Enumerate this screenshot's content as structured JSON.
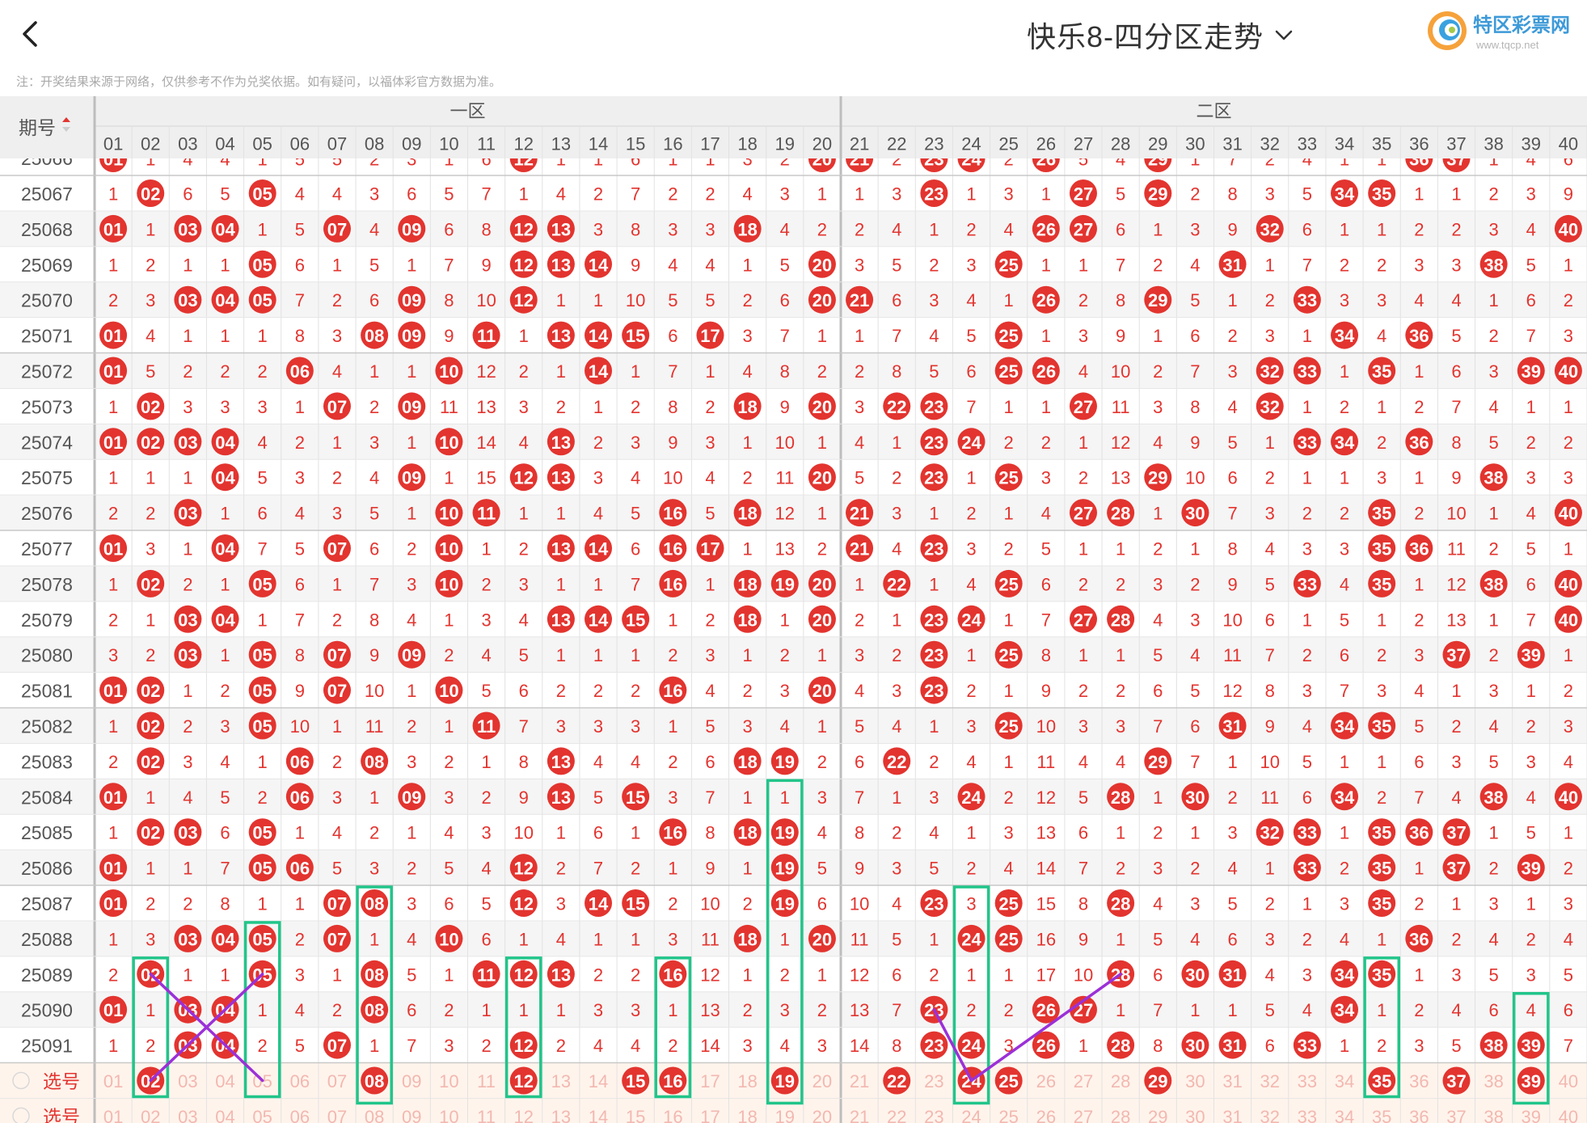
{
  "header": {
    "title": "快乐8-四分区走势",
    "logo_text": "特区彩票网",
    "logo_url_text": "www.tqcp.net"
  },
  "notice": "注：开奖结果来源于网络，仅供参考不作为兑奖依据。如有疑问，以福体彩官方数据为准。",
  "table": {
    "period_header": "期号",
    "zone_labels": [
      "一区",
      "二区"
    ],
    "columns": [
      "01",
      "02",
      "03",
      "04",
      "05",
      "06",
      "07",
      "08",
      "09",
      "10",
      "11",
      "12",
      "13",
      "14",
      "15",
      "16",
      "17",
      "18",
      "19",
      "20",
      "21",
      "22",
      "23",
      "24",
      "25",
      "26",
      "27",
      "28",
      "29",
      "30",
      "31",
      "32",
      "33",
      "34",
      "35",
      "36",
      "37",
      "38",
      "39",
      "40"
    ],
    "partial_top_row": {
      "period": "25066",
      "cells": [
        "01",
        "1",
        "4",
        "4",
        "1",
        "5",
        "5",
        "2",
        "3",
        "1",
        "6",
        "12",
        "1",
        "1",
        "6",
        "1",
        "1",
        "3",
        "2",
        "20",
        "21",
        "2",
        "23",
        "24",
        "2",
        "26",
        "5",
        "4",
        "29",
        "1",
        "7",
        "2",
        "4",
        "1",
        "1",
        "36",
        "37",
        "1",
        "4",
        "6"
      ]
    },
    "rows": [
      {
        "period": "25067",
        "cells": [
          "1",
          "02",
          "6",
          "5",
          "05",
          "4",
          "4",
          "3",
          "6",
          "5",
          "7",
          "1",
          "4",
          "2",
          "7",
          "2",
          "2",
          "4",
          "3",
          "1",
          "1",
          "3",
          "23",
          "1",
          "3",
          "1",
          "27",
          "5",
          "29",
          "2",
          "8",
          "3",
          "5",
          "34",
          "35",
          "1",
          "1",
          "2",
          "3",
          "9"
        ]
      },
      {
        "period": "25068",
        "cells": [
          "01",
          "1",
          "03",
          "04",
          "1",
          "5",
          "07",
          "4",
          "09",
          "6",
          "8",
          "12",
          "13",
          "3",
          "8",
          "3",
          "3",
          "18",
          "4",
          "2",
          "2",
          "4",
          "1",
          "2",
          "4",
          "26",
          "27",
          "6",
          "1",
          "3",
          "9",
          "32",
          "6",
          "1",
          "1",
          "2",
          "2",
          "3",
          "4",
          "40"
        ]
      },
      {
        "period": "25069",
        "cells": [
          "1",
          "2",
          "1",
          "1",
          "05",
          "6",
          "1",
          "5",
          "1",
          "7",
          "9",
          "12",
          "13",
          "14",
          "9",
          "4",
          "4",
          "1",
          "5",
          "20",
          "3",
          "5",
          "2",
          "3",
          "25",
          "1",
          "1",
          "7",
          "2",
          "4",
          "31",
          "1",
          "7",
          "2",
          "2",
          "3",
          "3",
          "38",
          "5",
          "1"
        ]
      },
      {
        "period": "25070",
        "cells": [
          "2",
          "3",
          "03",
          "04",
          "05",
          "7",
          "2",
          "6",
          "09",
          "8",
          "10",
          "12",
          "1",
          "1",
          "10",
          "5",
          "5",
          "2",
          "6",
          "20",
          "21",
          "6",
          "3",
          "4",
          "1",
          "26",
          "2",
          "8",
          "29",
          "5",
          "1",
          "2",
          "33",
          "3",
          "3",
          "4",
          "4",
          "1",
          "6",
          "2"
        ]
      },
      {
        "period": "25071",
        "cells": [
          "01",
          "4",
          "1",
          "1",
          "1",
          "8",
          "3",
          "08",
          "09",
          "9",
          "11",
          "1",
          "13",
          "14",
          "15",
          "6",
          "17",
          "3",
          "7",
          "1",
          "1",
          "7",
          "4",
          "5",
          "25",
          "1",
          "3",
          "9",
          "1",
          "6",
          "2",
          "3",
          "1",
          "34",
          "4",
          "36",
          "5",
          "2",
          "7",
          "3"
        ]
      },
      {
        "period": "25072",
        "cells": [
          "01",
          "5",
          "2",
          "2",
          "2",
          "06",
          "4",
          "1",
          "1",
          "10",
          "12",
          "2",
          "1",
          "14",
          "1",
          "7",
          "1",
          "4",
          "8",
          "2",
          "2",
          "8",
          "5",
          "6",
          "25",
          "26",
          "4",
          "10",
          "2",
          "7",
          "3",
          "32",
          "33",
          "1",
          "35",
          "1",
          "6",
          "3",
          "39",
          "40"
        ]
      },
      {
        "period": "25073",
        "cells": [
          "1",
          "02",
          "3",
          "3",
          "3",
          "1",
          "07",
          "2",
          "09",
          "11",
          "13",
          "3",
          "2",
          "1",
          "2",
          "8",
          "2",
          "18",
          "9",
          "20",
          "3",
          "22",
          "23",
          "7",
          "1",
          "1",
          "27",
          "11",
          "3",
          "8",
          "4",
          "32",
          "1",
          "2",
          "1",
          "2",
          "7",
          "4",
          "1",
          "1"
        ]
      },
      {
        "period": "25074",
        "cells": [
          "01",
          "02",
          "03",
          "04",
          "4",
          "2",
          "1",
          "3",
          "1",
          "10",
          "14",
          "4",
          "13",
          "2",
          "3",
          "9",
          "3",
          "1",
          "10",
          "1",
          "4",
          "1",
          "23",
          "24",
          "2",
          "2",
          "1",
          "12",
          "4",
          "9",
          "5",
          "1",
          "33",
          "34",
          "2",
          "36",
          "8",
          "5",
          "2",
          "2"
        ]
      },
      {
        "period": "25075",
        "cells": [
          "1",
          "1",
          "1",
          "04",
          "5",
          "3",
          "2",
          "4",
          "09",
          "1",
          "15",
          "12",
          "13",
          "3",
          "4",
          "10",
          "4",
          "2",
          "11",
          "20",
          "5",
          "2",
          "23",
          "1",
          "25",
          "3",
          "2",
          "13",
          "29",
          "10",
          "6",
          "2",
          "1",
          "1",
          "3",
          "1",
          "9",
          "38",
          "3",
          "3"
        ]
      },
      {
        "period": "25076",
        "cells": [
          "2",
          "2",
          "03",
          "1",
          "6",
          "4",
          "3",
          "5",
          "1",
          "10",
          "11",
          "1",
          "1",
          "4",
          "5",
          "16",
          "5",
          "18",
          "12",
          "1",
          "21",
          "3",
          "1",
          "2",
          "1",
          "4",
          "27",
          "28",
          "1",
          "30",
          "7",
          "3",
          "2",
          "2",
          "35",
          "2",
          "10",
          "1",
          "4",
          "40"
        ]
      },
      {
        "period": "25077",
        "cells": [
          "01",
          "3",
          "1",
          "04",
          "7",
          "5",
          "07",
          "6",
          "2",
          "10",
          "1",
          "2",
          "13",
          "14",
          "6",
          "16",
          "17",
          "1",
          "13",
          "2",
          "21",
          "4",
          "23",
          "3",
          "2",
          "5",
          "1",
          "1",
          "2",
          "1",
          "8",
          "4",
          "3",
          "3",
          "35",
          "36",
          "11",
          "2",
          "5",
          "1"
        ]
      },
      {
        "period": "25078",
        "cells": [
          "1",
          "02",
          "2",
          "1",
          "05",
          "6",
          "1",
          "7",
          "3",
          "10",
          "2",
          "3",
          "1",
          "1",
          "7",
          "16",
          "1",
          "18",
          "19",
          "20",
          "1",
          "22",
          "1",
          "4",
          "25",
          "6",
          "2",
          "2",
          "3",
          "2",
          "9",
          "5",
          "33",
          "4",
          "35",
          "1",
          "12",
          "38",
          "6",
          "40"
        ]
      },
      {
        "period": "25079",
        "cells": [
          "2",
          "1",
          "03",
          "04",
          "1",
          "7",
          "2",
          "8",
          "4",
          "1",
          "3",
          "4",
          "13",
          "14",
          "15",
          "1",
          "2",
          "18",
          "1",
          "20",
          "2",
          "1",
          "23",
          "24",
          "1",
          "7",
          "27",
          "28",
          "4",
          "3",
          "10",
          "6",
          "1",
          "5",
          "1",
          "2",
          "13",
          "1",
          "7",
          "40"
        ]
      },
      {
        "period": "25080",
        "cells": [
          "3",
          "2",
          "03",
          "1",
          "05",
          "8",
          "07",
          "9",
          "09",
          "2",
          "4",
          "5",
          "1",
          "1",
          "1",
          "2",
          "3",
          "1",
          "2",
          "1",
          "3",
          "2",
          "23",
          "1",
          "25",
          "8",
          "1",
          "1",
          "5",
          "4",
          "11",
          "7",
          "2",
          "6",
          "2",
          "3",
          "37",
          "2",
          "39",
          "1"
        ]
      },
      {
        "period": "25081",
        "cells": [
          "01",
          "02",
          "1",
          "2",
          "05",
          "9",
          "07",
          "10",
          "1",
          "10",
          "5",
          "6",
          "2",
          "2",
          "2",
          "16",
          "4",
          "2",
          "3",
          "20",
          "4",
          "3",
          "23",
          "2",
          "1",
          "9",
          "2",
          "2",
          "6",
          "5",
          "12",
          "8",
          "3",
          "7",
          "3",
          "4",
          "1",
          "3",
          "1",
          "2"
        ]
      },
      {
        "period": "25082",
        "cells": [
          "1",
          "02",
          "2",
          "3",
          "05",
          "10",
          "1",
          "11",
          "2",
          "1",
          "11",
          "7",
          "3",
          "3",
          "3",
          "1",
          "5",
          "3",
          "4",
          "1",
          "5",
          "4",
          "1",
          "3",
          "25",
          "10",
          "3",
          "3",
          "7",
          "6",
          "31",
          "9",
          "4",
          "34",
          "35",
          "5",
          "2",
          "4",
          "2",
          "3"
        ]
      },
      {
        "period": "25083",
        "cells": [
          "2",
          "02",
          "3",
          "4",
          "1",
          "06",
          "2",
          "08",
          "3",
          "2",
          "1",
          "8",
          "13",
          "4",
          "4",
          "2",
          "6",
          "18",
          "19",
          "2",
          "6",
          "22",
          "2",
          "4",
          "1",
          "11",
          "4",
          "4",
          "29",
          "7",
          "1",
          "10",
          "5",
          "1",
          "1",
          "6",
          "3",
          "5",
          "3",
          "4"
        ]
      },
      {
        "period": "25084",
        "cells": [
          "01",
          "1",
          "4",
          "5",
          "2",
          "06",
          "3",
          "1",
          "09",
          "3",
          "2",
          "9",
          "13",
          "5",
          "15",
          "3",
          "7",
          "1",
          "1",
          "3",
          "7",
          "1",
          "3",
          "24",
          "2",
          "12",
          "5",
          "28",
          "1",
          "30",
          "2",
          "11",
          "6",
          "34",
          "2",
          "7",
          "4",
          "38",
          "4",
          "40"
        ]
      },
      {
        "period": "25085",
        "cells": [
          "1",
          "02",
          "03",
          "6",
          "05",
          "1",
          "4",
          "2",
          "1",
          "4",
          "3",
          "10",
          "1",
          "6",
          "1",
          "16",
          "8",
          "18",
          "19",
          "4",
          "8",
          "2",
          "4",
          "1",
          "3",
          "13",
          "6",
          "1",
          "2",
          "1",
          "3",
          "32",
          "33",
          "1",
          "35",
          "36",
          "37",
          "1",
          "5",
          "1"
        ]
      },
      {
        "period": "25086",
        "cells": [
          "01",
          "1",
          "1",
          "7",
          "05",
          "06",
          "5",
          "3",
          "2",
          "5",
          "4",
          "12",
          "2",
          "7",
          "2",
          "1",
          "9",
          "1",
          "19",
          "5",
          "9",
          "3",
          "5",
          "2",
          "4",
          "14",
          "7",
          "2",
          "3",
          "2",
          "4",
          "1",
          "33",
          "2",
          "35",
          "1",
          "37",
          "2",
          "39",
          "2"
        ]
      },
      {
        "period": "25087",
        "cells": [
          "01",
          "2",
          "2",
          "8",
          "1",
          "1",
          "07",
          "08",
          "3",
          "6",
          "5",
          "12",
          "3",
          "14",
          "15",
          "2",
          "10",
          "2",
          "19",
          "6",
          "10",
          "4",
          "23",
          "3",
          "25",
          "15",
          "8",
          "28",
          "4",
          "3",
          "5",
          "2",
          "1",
          "3",
          "35",
          "2",
          "1",
          "3",
          "1",
          "3"
        ]
      },
      {
        "period": "25088",
        "cells": [
          "1",
          "3",
          "03",
          "04",
          "05",
          "2",
          "07",
          "1",
          "4",
          "10",
          "6",
          "1",
          "4",
          "1",
          "1",
          "3",
          "11",
          "18",
          "1",
          "20",
          "11",
          "5",
          "1",
          "24",
          "25",
          "16",
          "9",
          "1",
          "5",
          "4",
          "6",
          "3",
          "2",
          "4",
          "1",
          "36",
          "2",
          "4",
          "2",
          "4"
        ]
      },
      {
        "period": "25089",
        "cells": [
          "2",
          "02",
          "1",
          "1",
          "05",
          "3",
          "1",
          "08",
          "5",
          "1",
          "11",
          "12",
          "13",
          "2",
          "2",
          "16",
          "12",
          "1",
          "2",
          "1",
          "12",
          "6",
          "2",
          "1",
          "1",
          "17",
          "10",
          "28",
          "6",
          "30",
          "31",
          "4",
          "3",
          "34",
          "35",
          "1",
          "3",
          "5",
          "3",
          "5"
        ]
      },
      {
        "period": "25090",
        "cells": [
          "01",
          "1",
          "03",
          "04",
          "1",
          "4",
          "2",
          "08",
          "6",
          "2",
          "1",
          "1",
          "1",
          "3",
          "3",
          "1",
          "13",
          "2",
          "3",
          "2",
          "13",
          "7",
          "23",
          "2",
          "2",
          "26",
          "27",
          "1",
          "7",
          "1",
          "1",
          "5",
          "4",
          "34",
          "1",
          "2",
          "4",
          "6",
          "4",
          "6"
        ]
      },
      {
        "period": "25091",
        "cells": [
          "1",
          "2",
          "03",
          "04",
          "2",
          "5",
          "07",
          "1",
          "7",
          "3",
          "2",
          "12",
          "2",
          "4",
          "4",
          "2",
          "14",
          "3",
          "4",
          "3",
          "14",
          "8",
          "23",
          "24",
          "3",
          "26",
          "1",
          "28",
          "8",
          "30",
          "31",
          "6",
          "33",
          "1",
          "2",
          "3",
          "5",
          "38",
          "39",
          "7"
        ]
      }
    ],
    "select_label": "选号",
    "select_row_selected": [
      "02",
      "08",
      "12",
      "15",
      "16",
      "19",
      "22",
      "24",
      "25",
      "29",
      "35",
      "37",
      "39"
    ],
    "select_row2_label": "选号"
  },
  "colors": {
    "accent_red": "#e3342f",
    "dark_red": "#8b1a1a",
    "gray_text": "#666666",
    "highlight_box": "#21c58a",
    "cross_line": "#9b30d8"
  }
}
